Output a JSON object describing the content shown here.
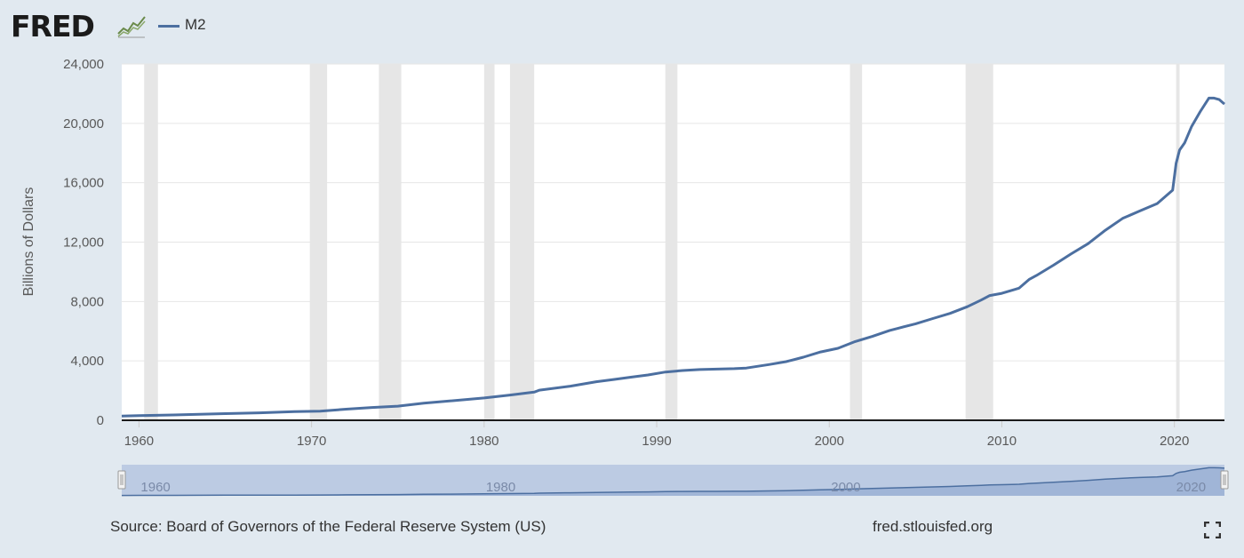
{
  "header": {
    "logo_text": "FRED",
    "legend_label": "M2",
    "icons": {
      "logo": "fred-logo-chart-icon",
      "legend": "legend-line-icon",
      "fullscreen": "fullscreen-icon"
    }
  },
  "footer": {
    "source": "Source: Board of Governors of the Federal Reserve System (US)",
    "site": "fred.stlouisfed.org"
  },
  "colors": {
    "page_bg": "#e1e9f0",
    "plot_bg": "#ffffff",
    "series": "#4c6fa0",
    "recession": "#e6e6e6",
    "navigator_fill": "#bccbe3",
    "grid": "#e6e6e6"
  },
  "chart_data": {
    "type": "line",
    "title": "",
    "xlabel": "",
    "ylabel": "Billions of Dollars",
    "ylim": [
      0,
      24000
    ],
    "xlim": [
      1959.0,
      2022.9
    ],
    "yticks": [
      0,
      4000,
      8000,
      12000,
      16000,
      20000,
      24000
    ],
    "ytick_labels": [
      "0",
      "4,000",
      "8,000",
      "12,000",
      "16,000",
      "20,000",
      "24,000"
    ],
    "xticks": [
      1960,
      1970,
      1980,
      1990,
      2000,
      2010,
      2020
    ],
    "xtick_labels": [
      "1960",
      "1970",
      "1980",
      "1990",
      "2000",
      "2010",
      "2020"
    ],
    "navigator_ticks": [
      1960,
      1980,
      2000,
      2020
    ],
    "navigator_tick_labels": [
      "1960",
      "1980",
      "2000",
      "2020"
    ],
    "grid": true,
    "legend": "top-left",
    "recessions": [
      [
        1960.3,
        1961.1
      ],
      [
        1969.9,
        1970.9
      ],
      [
        1973.9,
        1975.2
      ],
      [
        1980.0,
        1980.6
      ],
      [
        1981.5,
        1982.9
      ],
      [
        1990.5,
        1991.2
      ],
      [
        2001.2,
        2001.9
      ],
      [
        2007.9,
        2009.5
      ],
      [
        2020.1,
        2020.3
      ]
    ],
    "series": [
      {
        "name": "M2",
        "x": [
          1959.0,
          1960.0,
          1962.0,
          1965.0,
          1967.0,
          1969.0,
          1970.5,
          1972.0,
          1973.5,
          1975.0,
          1976.5,
          1978.0,
          1980.0,
          1981.5,
          1982.9,
          1983.2,
          1985.0,
          1986.5,
          1987.5,
          1988.5,
          1989.5,
          1990.5,
          1991.5,
          1992.5,
          1993.5,
          1994.5,
          1995.2,
          1996.5,
          1997.5,
          1998.5,
          1999.5,
          2000.5,
          2001.5,
          2002.5,
          2003.5,
          2004.0,
          2005.0,
          2006.0,
          2007.0,
          2008.0,
          2008.8,
          2009.3,
          2010.0,
          2011.0,
          2011.6,
          2012.0,
          2013.0,
          2014.0,
          2015.0,
          2016.0,
          2017.0,
          2018.0,
          2019.0,
          2019.9,
          2020.1,
          2020.3,
          2020.6,
          2021.0,
          2021.5,
          2022.0,
          2022.3,
          2022.6,
          2022.9
        ],
        "y": [
          290,
          310,
          360,
          450,
          500,
          580,
          610,
          750,
          860,
          950,
          1150,
          1300,
          1500,
          1700,
          1900,
          2030,
          2300,
          2600,
          2750,
          2900,
          3050,
          3250,
          3350,
          3420,
          3450,
          3480,
          3520,
          3750,
          3950,
          4250,
          4600,
          4850,
          5300,
          5650,
          6050,
          6200,
          6500,
          6850,
          7200,
          7650,
          8100,
          8400,
          8550,
          8900,
          9500,
          9750,
          10450,
          11200,
          11900,
          12800,
          13600,
          14100,
          14600,
          15500,
          17300,
          18200,
          18700,
          19800,
          20800,
          21700,
          21700,
          21600,
          21300
        ]
      }
    ]
  }
}
